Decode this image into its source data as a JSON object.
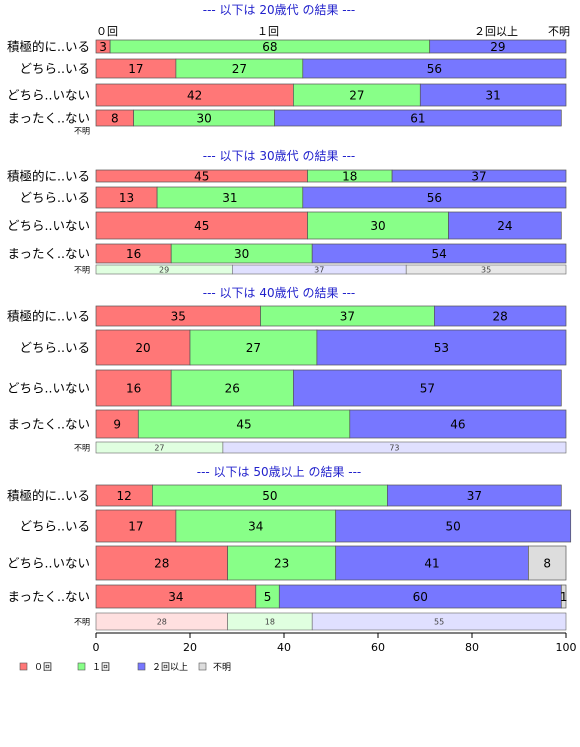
{
  "chart_data": {
    "type": "bar",
    "orientation": "horizontal",
    "stacked": "percent",
    "xlim": [
      0,
      100
    ],
    "x_ticks": [
      0,
      20,
      40,
      60,
      80,
      100
    ],
    "header_labels": [
      "０回",
      "１回",
      "２回以上",
      "不明"
    ],
    "legend": {
      "placement": "bottom-left",
      "entries": [
        {
          "name": "０回",
          "color": "#ff7777"
        },
        {
          "name": "１回",
          "color": "#88ff88"
        },
        {
          "name": "２回以上",
          "color": "#7777ff"
        },
        {
          "name": "不明",
          "color": "#dddddd"
        }
      ]
    },
    "series_colors": [
      "#ff7777",
      "#88ff88",
      "#7777ff",
      "#dddddd"
    ],
    "unknown_colors": [
      "#ffe0e0",
      "#e0ffe0",
      "#e0e0ff",
      "#e8e8e8"
    ],
    "groups": [
      {
        "title": "--- 以下は 20歳代 の結果 ---",
        "rows": [
          {
            "label": "積極的に..いる",
            "values": [
              3,
              68,
              29,
              0
            ]
          },
          {
            "label": "どちら..いる",
            "values": [
              17,
              27,
              56,
              0
            ]
          },
          {
            "label": "どちら..いない",
            "values": [
              42,
              27,
              31,
              0
            ]
          },
          {
            "label": "まったく..ない",
            "values": [
              8,
              30,
              61,
              0
            ]
          }
        ],
        "unknown": {
          "label": "不明",
          "values": []
        }
      },
      {
        "title": "--- 以下は 30歳代 の結果 ---",
        "rows": [
          {
            "label": "積極的に..いる",
            "values": [
              45,
              18,
              37,
              0
            ]
          },
          {
            "label": "どちら..いる",
            "values": [
              13,
              31,
              56,
              0
            ]
          },
          {
            "label": "どちら..いない",
            "values": [
              45,
              30,
              24,
              0
            ]
          },
          {
            "label": "まったく..ない",
            "values": [
              16,
              30,
              54,
              0
            ]
          }
        ],
        "unknown": {
          "label": "不明",
          "values": [
            0,
            29,
            37,
            35
          ]
        }
      },
      {
        "title": "--- 以下は 40歳代 の結果 ---",
        "rows": [
          {
            "label": "積極的に..いる",
            "values": [
              35,
              37,
              28,
              0
            ]
          },
          {
            "label": "どちら..いる",
            "values": [
              20,
              27,
              53,
              0
            ]
          },
          {
            "label": "どちら..いない",
            "values": [
              16,
              26,
              57,
              0
            ]
          },
          {
            "label": "まったく..ない",
            "values": [
              9,
              45,
              46,
              0
            ]
          }
        ],
        "unknown": {
          "label": "不明",
          "values": [
            0,
            27,
            73,
            0
          ]
        }
      },
      {
        "title": "--- 以下は 50歳以上 の結果 ---",
        "rows": [
          {
            "label": "積極的に..いる",
            "values": [
              12,
              50,
              37,
              0
            ]
          },
          {
            "label": "どちら..いる",
            "values": [
              17,
              34,
              50,
              0
            ]
          },
          {
            "label": "どちら..いない",
            "values": [
              28,
              23,
              41,
              8
            ]
          },
          {
            "label": "まったく..ない",
            "values": [
              34,
              5,
              60,
              1
            ]
          }
        ],
        "unknown": {
          "label": "不明",
          "values": [
            28,
            18,
            55,
            0
          ]
        }
      }
    ]
  }
}
